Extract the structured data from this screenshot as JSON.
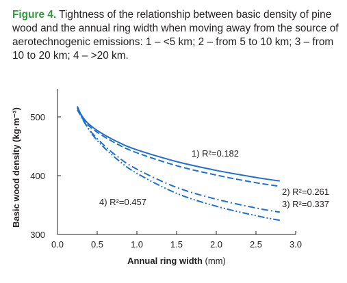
{
  "caption": {
    "label": "Figure 4.",
    "text": " Tightness of the relationship between basic density of pine wood and the annual ring width when moving away from the source of aerotechnogenic emissions: 1 – <5 km; 2 – from 5 to 10 km; 3 – from 10 to 20 km; 4 – >20 km."
  },
  "chart_data": {
    "type": "line",
    "xlabel_main": "Annual ring width",
    "xlabel_unit": " (mm)",
    "ylabel": "Basic wood density (kg·m⁻³)",
    "xlim": [
      0.0,
      3.0
    ],
    "ylim": [
      300,
      500
    ],
    "x_ticks": [
      "0.0",
      "0.5",
      "1.0",
      "1.5",
      "2.0",
      "2.5",
      "3.0"
    ],
    "y_ticks": [
      "300",
      "400",
      "500"
    ],
    "grid": false,
    "line_color": "#1f6fd1",
    "series": [
      {
        "name": "1) R²=0.182",
        "dash": "solid",
        "x": [
          0.25,
          0.35,
          0.5,
          0.75,
          1.0,
          1.5,
          2.0,
          2.5,
          2.8
        ],
        "y": [
          515,
          494,
          477,
          458,
          444,
          424,
          409,
          397,
          391
        ]
      },
      {
        "name": "2) R²=0.261",
        "dash": "dash",
        "x": [
          0.25,
          0.35,
          0.5,
          0.75,
          1.0,
          1.5,
          2.0,
          2.5,
          2.8
        ],
        "y": [
          512,
          491,
          474,
          454,
          439,
          417,
          401,
          388,
          382
        ]
      },
      {
        "name": "3) R²=0.337",
        "dash": "dashdot",
        "x": [
          0.25,
          0.35,
          0.5,
          0.75,
          1.0,
          1.5,
          2.0,
          2.5,
          2.8
        ],
        "y": [
          516,
          488,
          463,
          433,
          411,
          380,
          360,
          345,
          338
        ]
      },
      {
        "name": "4) R²=0.457",
        "dash": "dashdotdot",
        "x": [
          0.25,
          0.35,
          0.5,
          0.75,
          1.0,
          1.5,
          2.0,
          2.5,
          2.8
        ],
        "y": [
          518,
          489,
          460,
          428,
          404,
          370,
          348,
          332,
          324
        ]
      }
    ],
    "annotations": [
      "1) R²=0.182",
      "2) R²=0.261",
      "3) R²=0.337",
      "4) R²=0.457"
    ]
  }
}
